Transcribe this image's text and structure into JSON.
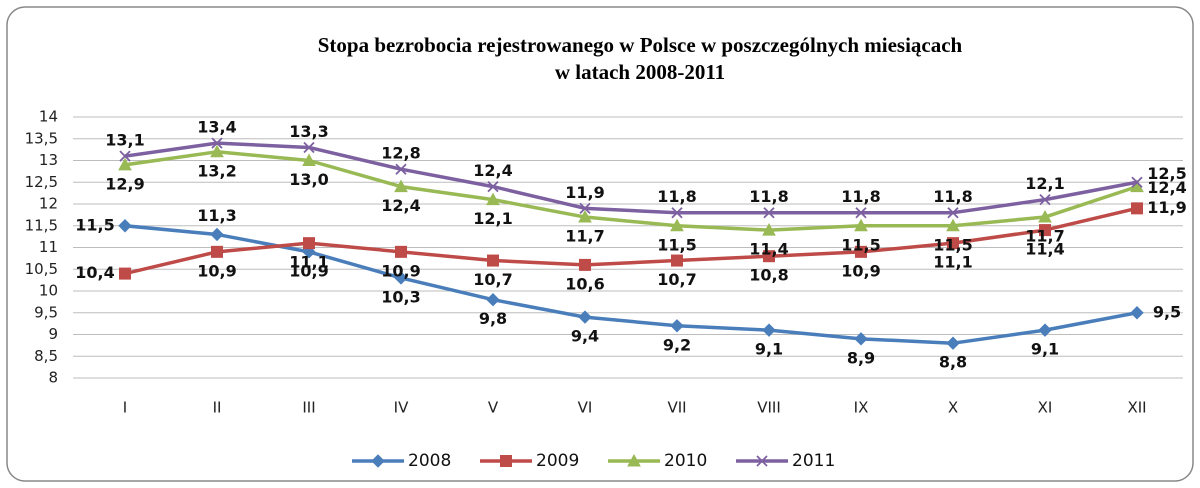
{
  "chart_data": {
    "type": "line",
    "title": [
      "Stopa bezrobocia rejestrowanego w Polsce w poszczególnych miesiącach",
      "w latach 2008-2011"
    ],
    "categories": [
      "I",
      "II",
      "III",
      "IV",
      "V",
      "VI",
      "VII",
      "VIII",
      "IX",
      "X",
      "XI",
      "XII"
    ],
    "ylim": [
      8,
      14
    ],
    "yticks": [
      8,
      {
        "value": 8.5,
        "label": "8,5"
      },
      9,
      {
        "value": 9.5,
        "label": "9,5"
      },
      10,
      {
        "value": 10.5,
        "label": "10,5"
      },
      11,
      {
        "value": 11.5,
        "label": "11,5"
      },
      12,
      {
        "value": 12.5,
        "label": "12,5"
      },
      13,
      {
        "value": 13.5,
        "label": "13,5"
      },
      14
    ],
    "grid": true,
    "legend": "bottom",
    "series": [
      {
        "name": "2008",
        "color": "#4a7ebb",
        "marker": "diamond",
        "values": [
          11.5,
          11.3,
          10.9,
          10.3,
          9.8,
          9.4,
          9.2,
          9.1,
          8.9,
          8.8,
          9.1,
          9.5
        ],
        "value_labels": [
          "11,5",
          "11,3",
          "10,9",
          "10,3",
          "9,8",
          "9,4",
          "9,2",
          "9,1",
          "8,9",
          "8,8",
          "9,1",
          "9,5"
        ]
      },
      {
        "name": "2009",
        "color": "#be4b48",
        "marker": "square",
        "values": [
          10.4,
          10.9,
          11.1,
          10.9,
          10.7,
          10.6,
          10.7,
          10.8,
          10.9,
          11.1,
          11.4,
          11.9
        ],
        "value_labels": [
          "10,4",
          "10,9",
          "11,1",
          "10,9",
          "10,7",
          "10,6",
          "10,7",
          "10,8",
          "10,9",
          "11,1",
          "11,4",
          "11,9"
        ]
      },
      {
        "name": "2010",
        "color": "#98b954",
        "marker": "triangle",
        "values": [
          12.9,
          13.2,
          13.0,
          12.4,
          12.1,
          11.7,
          11.5,
          11.4,
          11.5,
          11.5,
          11.7,
          12.4
        ],
        "value_labels": [
          "12,9",
          "13,2",
          "13,0",
          "12,4",
          "12,1",
          "11,7",
          "11,5",
          "11,4",
          "11,5",
          "11,5",
          "11,7",
          "12,4"
        ]
      },
      {
        "name": "2011",
        "color": "#7d60a0",
        "marker": "x",
        "values": [
          13.1,
          13.4,
          13.3,
          12.8,
          12.4,
          11.9,
          11.8,
          11.8,
          11.8,
          11.8,
          12.1,
          12.5
        ],
        "value_labels": [
          "13,1",
          "13,4",
          "13,3",
          "12,8",
          "12,4",
          "11,9",
          "11,8",
          "11,8",
          "11,8",
          "11,8",
          "12,1",
          "12,5"
        ]
      }
    ]
  }
}
